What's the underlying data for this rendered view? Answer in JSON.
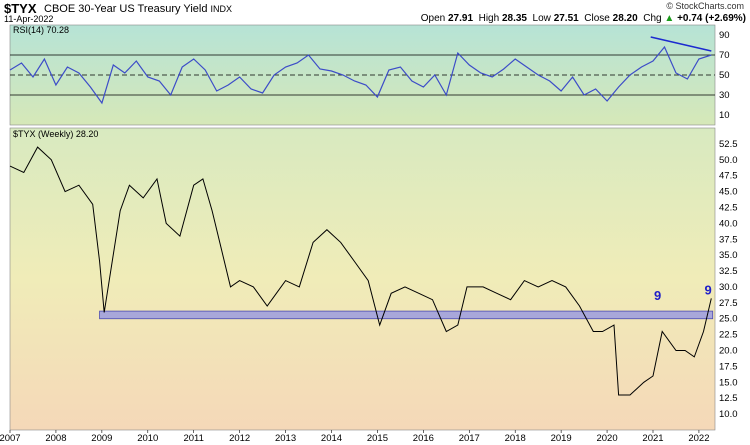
{
  "header": {
    "symbol": "$TYX",
    "description": "CBOE 30-Year US Treasury Yield",
    "exchange": "INDX",
    "date": "11-Apr-2022",
    "watermark": "© StockCharts.com",
    "open_label": "Open",
    "open": "27.91",
    "high_label": "High",
    "high": "28.35",
    "low_label": "Low",
    "low": "27.51",
    "close_label": "Close",
    "close": "28.20",
    "chg_label": "Chg",
    "chg": "+0.74 (+2.69%)",
    "chg_arrow": "▲"
  },
  "chart_data": [
    {
      "type": "line",
      "legend": "RSI(14) 70.28",
      "ylim": [
        0,
        100
      ],
      "yticks": [
        10,
        30,
        50,
        70,
        90
      ],
      "reference_lines": [
        30,
        50,
        70
      ],
      "series": [
        {
          "values_x": [
            2007.0,
            2007.25,
            2007.5,
            2007.75,
            2008.0,
            2008.25,
            2008.5,
            2008.75,
            2009.0,
            2009.25,
            2009.5,
            2009.75,
            2010.0,
            2010.25,
            2010.5,
            2010.75,
            2011.0,
            2011.25,
            2011.5,
            2011.75,
            2012.0,
            2012.25,
            2012.5,
            2012.75,
            2013.0,
            2013.25,
            2013.5,
            2013.75,
            2014.0,
            2014.25,
            2014.5,
            2014.75,
            2015.0,
            2015.25,
            2015.5,
            2015.75,
            2016.0,
            2016.25,
            2016.5,
            2016.75,
            2017.0,
            2017.25,
            2017.5,
            2017.75,
            2018.0,
            2018.25,
            2018.5,
            2018.75,
            2019.0,
            2019.25,
            2019.5,
            2019.75,
            2020.0,
            2020.25,
            2020.5,
            2020.75,
            2021.0,
            2021.25,
            2021.5,
            2021.75,
            2022.0,
            2022.27
          ],
          "values_y": [
            55,
            62,
            48,
            66,
            40,
            58,
            52,
            38,
            22,
            60,
            52,
            64,
            48,
            44,
            30,
            58,
            66,
            55,
            34,
            40,
            48,
            36,
            32,
            50,
            58,
            62,
            70,
            56,
            54,
            50,
            44,
            40,
            28,
            55,
            58,
            44,
            38,
            50,
            30,
            72,
            60,
            52,
            48,
            56,
            66,
            58,
            50,
            44,
            34,
            48,
            30,
            36,
            24,
            38,
            50,
            58,
            64,
            78,
            52,
            46,
            66,
            70
          ]
        }
      ],
      "trendline": {
        "from": [
          2020.95,
          88
        ],
        "to": [
          2022.27,
          74
        ]
      }
    },
    {
      "type": "line",
      "legend": "$TYX (Weekly) 28.20",
      "ylim": [
        7.5,
        55
      ],
      "yticks": [
        10.0,
        12.5,
        15.0,
        17.5,
        20.0,
        22.5,
        25.0,
        27.5,
        30.0,
        32.5,
        35.0,
        37.5,
        40.0,
        42.5,
        45.0,
        47.5,
        50.0,
        52.5
      ],
      "x_ticks": [
        "2007",
        "2008",
        "2009",
        "2010",
        "2011",
        "2012",
        "2013",
        "2014",
        "2015",
        "2016",
        "2017",
        "2018",
        "2019",
        "2020",
        "2021",
        "2022"
      ],
      "xlim": [
        2007.0,
        2022.35
      ],
      "series": [
        {
          "x": [
            2007.0,
            2007.3,
            2007.6,
            2007.9,
            2008.2,
            2008.5,
            2008.8,
            2008.95,
            2009.05,
            2009.4,
            2009.6,
            2009.9,
            2010.2,
            2010.4,
            2010.7,
            2011.0,
            2011.2,
            2011.4,
            2011.6,
            2011.8,
            2012.0,
            2012.3,
            2012.6,
            2012.8,
            2013.0,
            2013.3,
            2013.6,
            2013.9,
            2014.2,
            2014.5,
            2014.8,
            2015.05,
            2015.3,
            2015.6,
            2015.9,
            2016.2,
            2016.5,
            2016.75,
            2016.95,
            2017.3,
            2017.6,
            2017.9,
            2018.2,
            2018.5,
            2018.8,
            2019.1,
            2019.4,
            2019.7,
            2019.9,
            2020.15,
            2020.25,
            2020.5,
            2020.8,
            2021.0,
            2021.2,
            2021.5,
            2021.7,
            2021.9,
            2022.1,
            2022.27
          ],
          "y": [
            49,
            48,
            52,
            50,
            45,
            46,
            43,
            34,
            26,
            42,
            46,
            44,
            47,
            40,
            38,
            46,
            47,
            42,
            36,
            30,
            31,
            30,
            27,
            29,
            31,
            30,
            37,
            39,
            37,
            34,
            31,
            24,
            29,
            30,
            29,
            28,
            23,
            24,
            30,
            30,
            29,
            28,
            31,
            30,
            31,
            30,
            27,
            23,
            23,
            24,
            13,
            13,
            15,
            16,
            23,
            20,
            20,
            19,
            23,
            28.2
          ]
        }
      ],
      "support_zone": {
        "from_x": 2008.95,
        "to_x": 2022.3,
        "low": 25.0,
        "high": 26.2
      },
      "annotations": [
        {
          "text": "9",
          "x": 2021.1,
          "y": 27.3
        },
        {
          "text": "9",
          "x": 2022.2,
          "y": 28.2
        }
      ]
    }
  ]
}
